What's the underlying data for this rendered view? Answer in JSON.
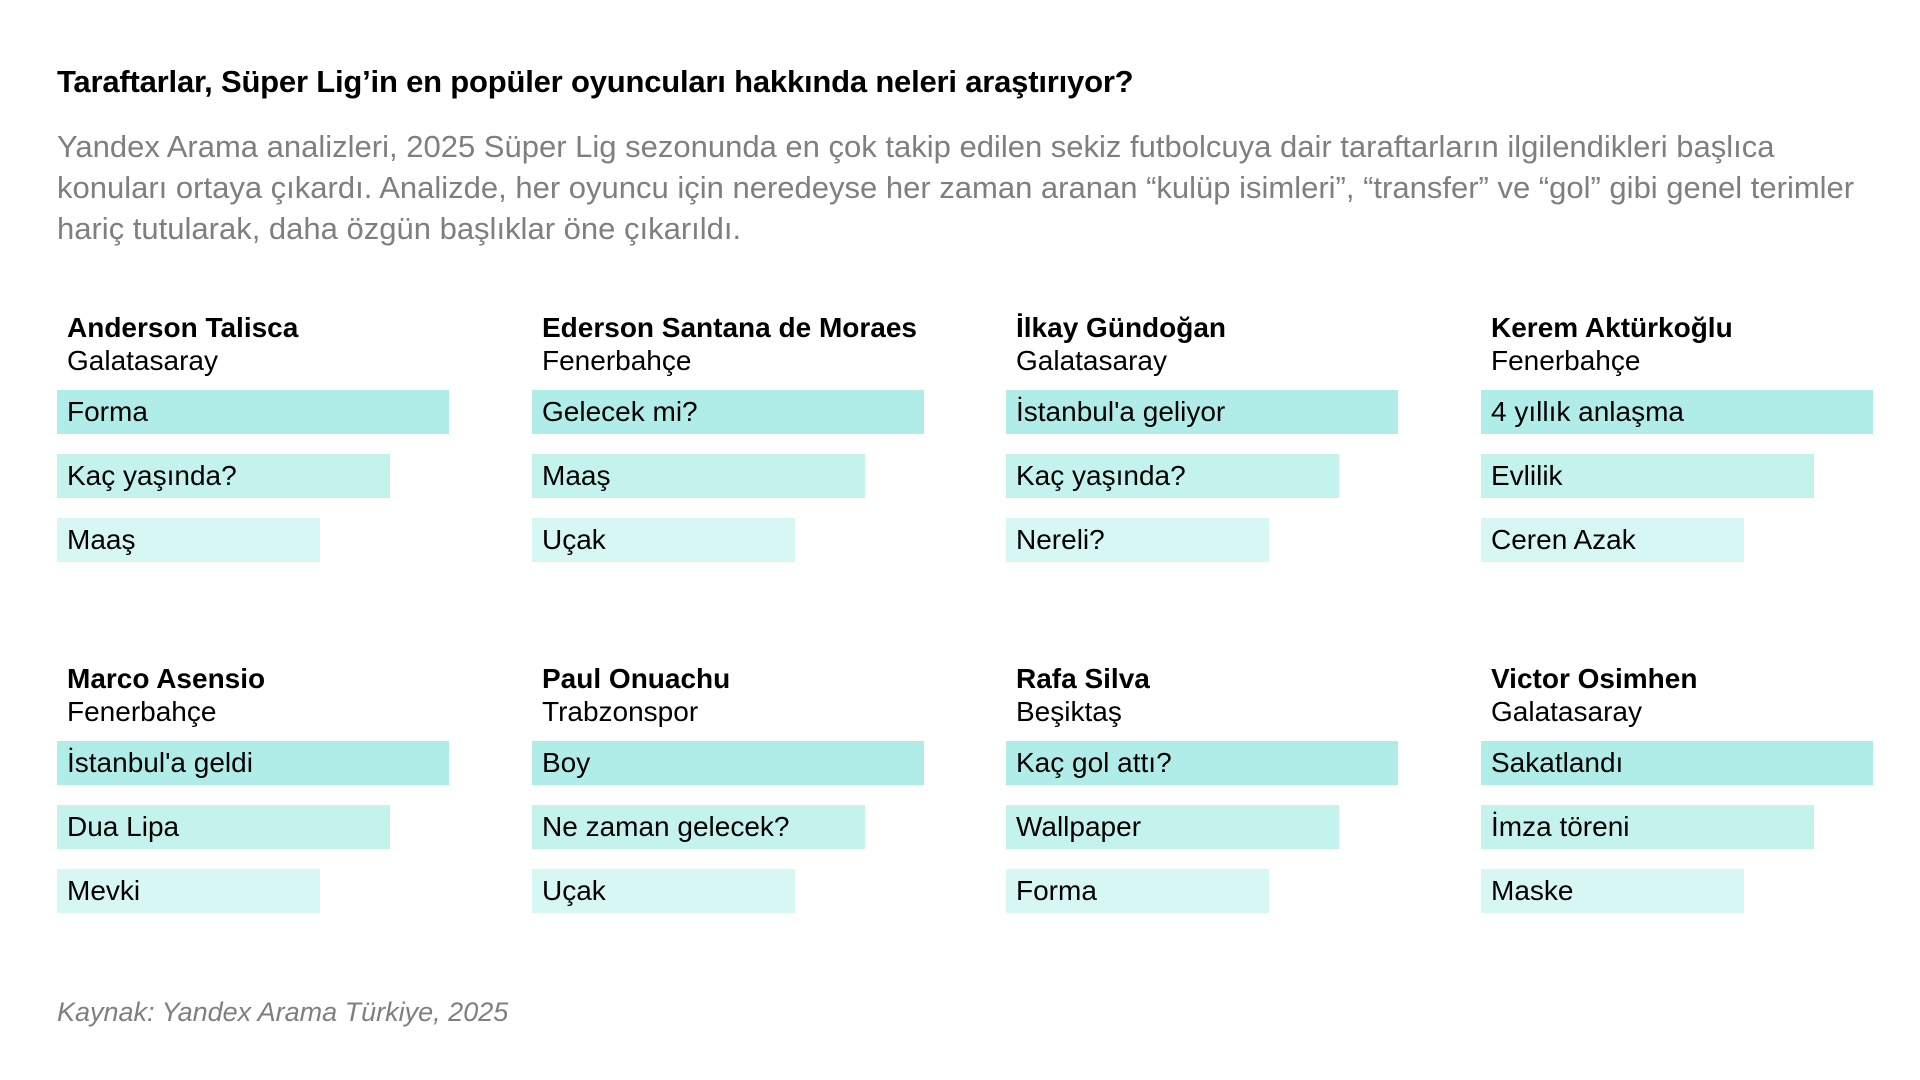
{
  "title": "Taraftarlar, Süper Lig’in en popüler oyuncuları hakkında neleri araştırıyor?",
  "subtitle": "Yandex Arama analizleri, 2025 Süper Lig sezonunda en çok takip edilen sekiz futbolcuya dair taraftarların ilgilendikleri başlıca konuları ortaya çıkardı. Analizde, her oyuncu için neredeyse her zaman aranan “kulüp isimleri”, “transfer” ve “gol” gibi genel terimler hariç tutularak, daha özgün başlıklar öne çıkarıldı.",
  "source": "Kaynak: Yandex Arama Türkiye, 2025",
  "colors": {
    "bar_rank1": "#b1ede8",
    "bar_rank2": "#c4f3ee",
    "bar_rank3": "#d6f7f4",
    "muted_text": "#7f7f7f"
  },
  "chart_data": {
    "type": "bar",
    "orientation": "horizontal",
    "title": "Taraftarlar, Süper Lig’in en popüler oyuncuları hakkında neleri araştırıyor?",
    "note": "Bars show relative search interest rank (1–3) per player; lengths are relative",
    "relative_values": [
      1.0,
      0.85,
      0.67
    ],
    "players": [
      {
        "name": "Anderson Talisca",
        "team": "Galatasaray",
        "topics": [
          "Forma",
          "Kaç yaşında?",
          "Maaş"
        ]
      },
      {
        "name": "Ederson Santana de Moraes",
        "team": "Fenerbahçe",
        "topics": [
          "Gelecek mi?",
          "Maaş",
          "Uçak"
        ]
      },
      {
        "name": "İlkay Gündoğan",
        "team": "Galatasaray",
        "topics": [
          "İstanbul'a geliyor",
          "Kaç yaşında?",
          "Nereli?"
        ]
      },
      {
        "name": "Kerem Aktürkoğlu",
        "team": "Fenerbahçe",
        "topics": [
          "4 yıllık anlaşma",
          "Evlilik",
          "Ceren Azak"
        ]
      },
      {
        "name": "Marco Asensio",
        "team": "Fenerbahçe",
        "topics": [
          "İstanbul'a geldi",
          "Dua Lipa",
          "Mevki"
        ]
      },
      {
        "name": "Paul Onuachu",
        "team": "Trabzonspor",
        "topics": [
          "Boy",
          "Ne zaman gelecek?",
          "Uçak"
        ]
      },
      {
        "name": "Rafa Silva",
        "team": "Beşiktaş",
        "topics": [
          "Kaç gol attı?",
          "Wallpaper",
          "Forma"
        ]
      },
      {
        "name": "Victor Osimhen",
        "team": "Galatasaray",
        "topics": [
          "Sakatlandı",
          "İmza töreni",
          "Maske"
        ]
      }
    ]
  }
}
